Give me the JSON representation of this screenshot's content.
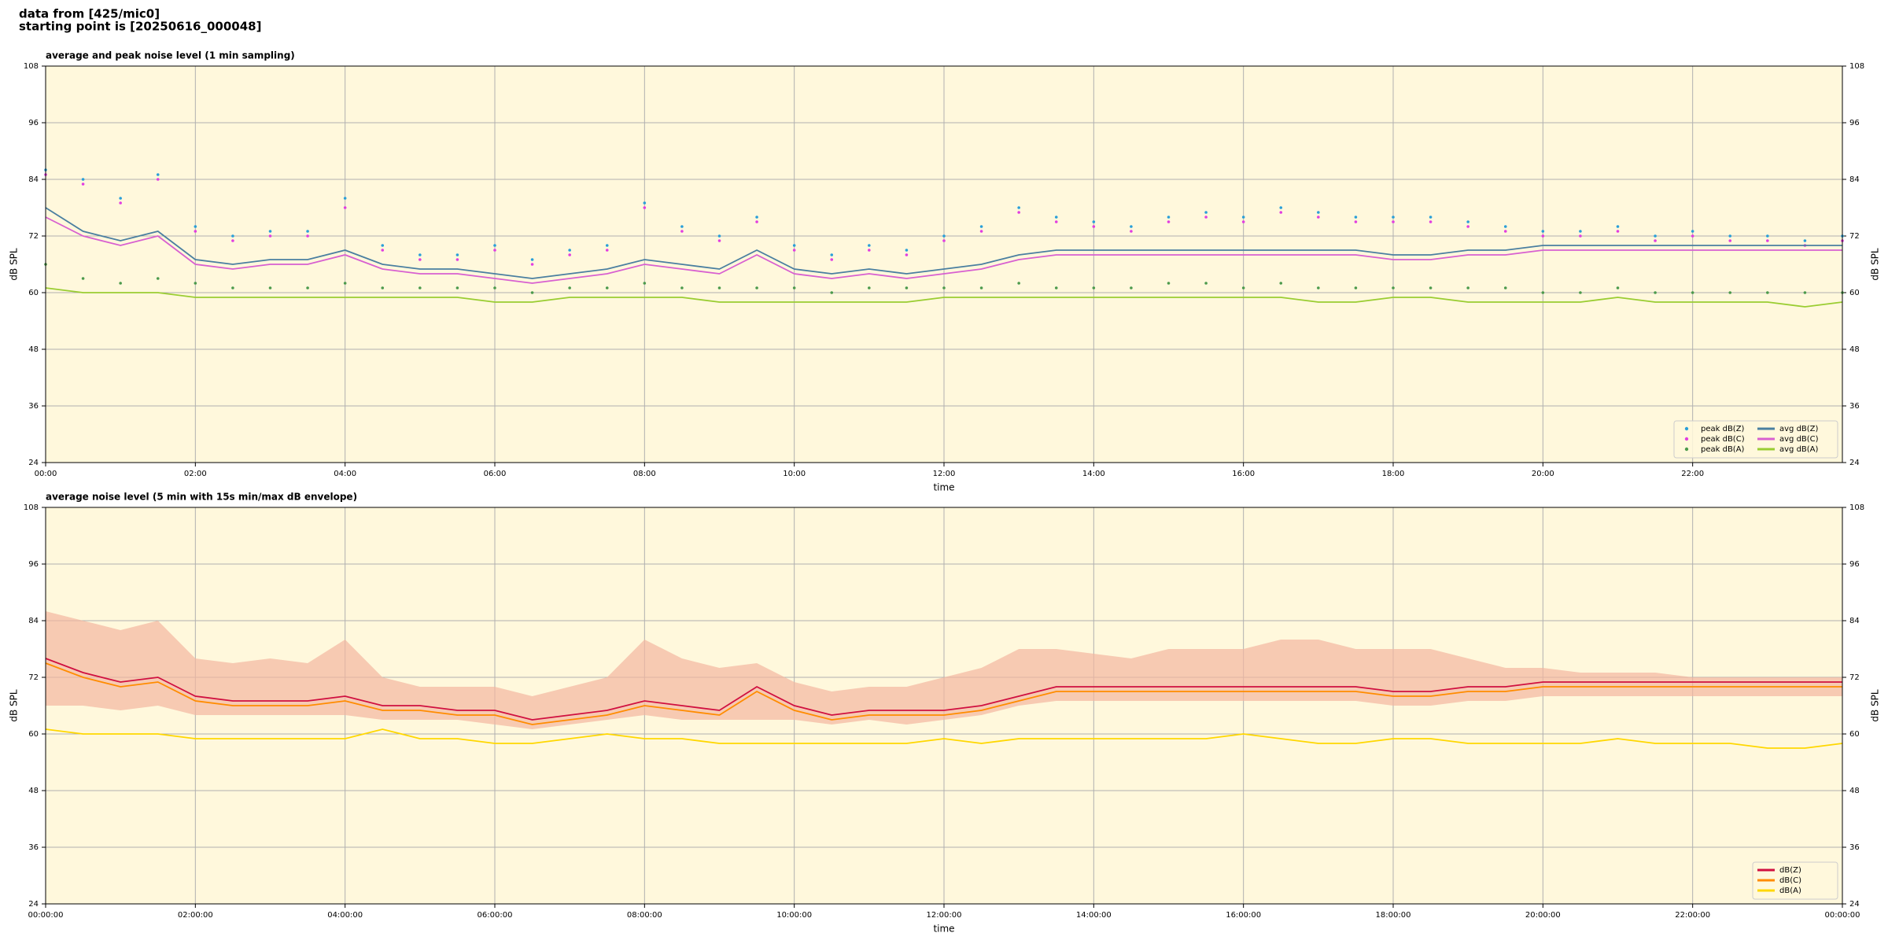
{
  "header": {
    "line1": "data from [425/mic0]",
    "line2": "starting point is [20250616_000048]"
  },
  "chart_data": [
    {
      "type": "line",
      "title": "average and peak noise level (1 min sampling)",
      "xlabel": "time",
      "ylabel": "dB SPL",
      "xlim": [
        0,
        24
      ],
      "ylim": [
        24,
        108
      ],
      "xticks": [
        {
          "value": 0,
          "label": "00:00"
        },
        {
          "value": 2,
          "label": "02:00"
        },
        {
          "value": 4,
          "label": "04:00"
        },
        {
          "value": 6,
          "label": "06:00"
        },
        {
          "value": 8,
          "label": "08:00"
        },
        {
          "value": 10,
          "label": "10:00"
        },
        {
          "value": 12,
          "label": "12:00"
        },
        {
          "value": 14,
          "label": "14:00"
        },
        {
          "value": 16,
          "label": "16:00"
        },
        {
          "value": 18,
          "label": "18:00"
        },
        {
          "value": 20,
          "label": "20:00"
        },
        {
          "value": 22,
          "label": "22:00"
        }
      ],
      "yticks": [
        24,
        36,
        48,
        60,
        72,
        84,
        96,
        108
      ],
      "grid": true,
      "legend": "lower right",
      "legend_ncol": 2,
      "background": "#fff8dc",
      "x": [
        0,
        0.5,
        1,
        1.5,
        2,
        2.5,
        3,
        3.5,
        4,
        4.5,
        5,
        5.5,
        6,
        6.5,
        7,
        7.5,
        8,
        8.5,
        9,
        9.5,
        10,
        10.5,
        11,
        11.5,
        12,
        12.5,
        13,
        13.5,
        14,
        14.5,
        15,
        15.5,
        16,
        16.5,
        17,
        17.5,
        18,
        18.5,
        19,
        19.5,
        20,
        20.5,
        21,
        21.5,
        22,
        22.5,
        23,
        23.5,
        24
      ],
      "series": [
        {
          "name": "peak dB(Z)",
          "type": "scatter",
          "color": "#2a9fd8",
          "values": [
            86,
            84,
            80,
            85,
            74,
            72,
            73,
            73,
            80,
            70,
            68,
            68,
            70,
            67,
            69,
            70,
            79,
            74,
            72,
            76,
            70,
            68,
            70,
            69,
            72,
            74,
            78,
            76,
            75,
            74,
            76,
            77,
            76,
            78,
            77,
            76,
            76,
            76,
            75,
            74,
            73,
            73,
            74,
            72,
            73,
            72,
            72,
            71,
            72
          ]
        },
        {
          "name": "peak dB(C)",
          "type": "scatter",
          "color": "#e23ee0",
          "values": [
            85,
            83,
            79,
            84,
            73,
            71,
            72,
            72,
            78,
            69,
            67,
            67,
            69,
            66,
            68,
            69,
            78,
            73,
            71,
            75,
            69,
            67,
            69,
            68,
            71,
            73,
            77,
            75,
            74,
            73,
            75,
            76,
            75,
            77,
            76,
            75,
            75,
            75,
            74,
            73,
            72,
            72,
            73,
            71,
            72,
            71,
            71,
            70,
            71
          ]
        },
        {
          "name": "peak dB(A)",
          "type": "scatter",
          "color": "#4c9a4c",
          "values": [
            66,
            63,
            62,
            63,
            62,
            61,
            61,
            61,
            62,
            61,
            61,
            61,
            61,
            60,
            61,
            61,
            62,
            61,
            61,
            61,
            61,
            60,
            61,
            61,
            61,
            61,
            62,
            61,
            61,
            61,
            62,
            62,
            61,
            62,
            61,
            61,
            61,
            61,
            61,
            61,
            60,
            60,
            61,
            60,
            60,
            60,
            60,
            60,
            60
          ]
        },
        {
          "name": "avg dB(Z)",
          "type": "line",
          "color": "#4a7fa0",
          "values": [
            78,
            73,
            71,
            73,
            67,
            66,
            67,
            67,
            69,
            66,
            65,
            65,
            64,
            63,
            64,
            65,
            67,
            66,
            65,
            69,
            65,
            64,
            65,
            64,
            65,
            66,
            68,
            69,
            69,
            69,
            69,
            69,
            69,
            69,
            69,
            69,
            68,
            68,
            69,
            69,
            70,
            70,
            70,
            70,
            70,
            70,
            70,
            70,
            70
          ]
        },
        {
          "name": "avg dB(C)",
          "type": "line",
          "color": "#d860d0",
          "values": [
            76,
            72,
            70,
            72,
            66,
            65,
            66,
            66,
            68,
            65,
            64,
            64,
            63,
            62,
            63,
            64,
            66,
            65,
            64,
            68,
            64,
            63,
            64,
            63,
            64,
            65,
            67,
            68,
            68,
            68,
            68,
            68,
            68,
            68,
            68,
            68,
            67,
            67,
            68,
            68,
            69,
            69,
            69,
            69,
            69,
            69,
            69,
            69,
            69
          ]
        },
        {
          "name": "avg dB(A)",
          "type": "line",
          "color": "#9acd32",
          "values": [
            61,
            60,
            60,
            60,
            59,
            59,
            59,
            59,
            59,
            59,
            59,
            59,
            58,
            58,
            59,
            59,
            59,
            59,
            58,
            58,
            58,
            58,
            58,
            58,
            59,
            59,
            59,
            59,
            59,
            59,
            59,
            59,
            59,
            59,
            58,
            58,
            59,
            59,
            58,
            58,
            58,
            58,
            59,
            58,
            58,
            58,
            58,
            57,
            58
          ]
        }
      ]
    },
    {
      "type": "line",
      "title": "average noise level (5 min with 15s min/max dB envelope)",
      "xlabel": "time",
      "ylabel": "dB SPL",
      "xlim": [
        0,
        24
      ],
      "ylim": [
        24,
        108
      ],
      "xticks": [
        {
          "value": 0,
          "label": "00:00:00"
        },
        {
          "value": 2,
          "label": "02:00:00"
        },
        {
          "value": 4,
          "label": "04:00:00"
        },
        {
          "value": 6,
          "label": "06:00:00"
        },
        {
          "value": 8,
          "label": "08:00:00"
        },
        {
          "value": 10,
          "label": "10:00:00"
        },
        {
          "value": 12,
          "label": "12:00:00"
        },
        {
          "value": 14,
          "label": "14:00:00"
        },
        {
          "value": 16,
          "label": "16:00:00"
        },
        {
          "value": 18,
          "label": "18:00:00"
        },
        {
          "value": 20,
          "label": "20:00:00"
        },
        {
          "value": 22,
          "label": "22:00:00"
        },
        {
          "value": 24,
          "label": "00:00:00"
        }
      ],
      "yticks": [
        24,
        36,
        48,
        60,
        72,
        84,
        96,
        108
      ],
      "grid": true,
      "legend": "lower right",
      "legend_ncol": 1,
      "background": "#fff8dc",
      "x": [
        0,
        0.5,
        1,
        1.5,
        2,
        2.5,
        3,
        3.5,
        4,
        4.5,
        5,
        5.5,
        6,
        6.5,
        7,
        7.5,
        8,
        8.5,
        9,
        9.5,
        10,
        10.5,
        11,
        11.5,
        12,
        12.5,
        13,
        13.5,
        14,
        14.5,
        15,
        15.5,
        16,
        16.5,
        17,
        17.5,
        18,
        18.5,
        19,
        19.5,
        20,
        20.5,
        21,
        21.5,
        22,
        22.5,
        23,
        23.5,
        24
      ],
      "envelope": {
        "color": "#f4b6a0",
        "upper": [
          86,
          84,
          82,
          84,
          76,
          75,
          76,
          75,
          80,
          72,
          70,
          70,
          70,
          68,
          70,
          72,
          80,
          76,
          74,
          75,
          71,
          69,
          70,
          70,
          72,
          74,
          78,
          78,
          77,
          76,
          78,
          78,
          78,
          80,
          80,
          78,
          78,
          78,
          76,
          74,
          74,
          73,
          73,
          73,
          72,
          72,
          72,
          72,
          72
        ],
        "lower": [
          66,
          66,
          65,
          66,
          64,
          64,
          64,
          64,
          64,
          63,
          63,
          63,
          62,
          61,
          62,
          63,
          64,
          63,
          63,
          63,
          63,
          62,
          63,
          62,
          63,
          64,
          66,
          67,
          67,
          67,
          67,
          67,
          67,
          67,
          67,
          67,
          66,
          66,
          67,
          67,
          68,
          68,
          68,
          68,
          68,
          68,
          68,
          68,
          68
        ]
      },
      "series": [
        {
          "name": "dB(Z)",
          "type": "line",
          "color": "#d01040",
          "values": [
            76,
            73,
            71,
            72,
            68,
            67,
            67,
            67,
            68,
            66,
            66,
            65,
            65,
            63,
            64,
            65,
            67,
            66,
            65,
            70,
            66,
            64,
            65,
            65,
            65,
            66,
            68,
            70,
            70,
            70,
            70,
            70,
            70,
            70,
            70,
            70,
            69,
            69,
            70,
            70,
            71,
            71,
            71,
            71,
            71,
            71,
            71,
            71,
            71
          ]
        },
        {
          "name": "dB(C)",
          "type": "line",
          "color": "#ff8c00",
          "values": [
            75,
            72,
            70,
            71,
            67,
            66,
            66,
            66,
            67,
            65,
            65,
            64,
            64,
            62,
            63,
            64,
            66,
            65,
            64,
            69,
            65,
            63,
            64,
            64,
            64,
            65,
            67,
            69,
            69,
            69,
            69,
            69,
            69,
            69,
            69,
            69,
            68,
            68,
            69,
            69,
            70,
            70,
            70,
            70,
            70,
            70,
            70,
            70,
            70
          ]
        },
        {
          "name": "dB(A)",
          "type": "line",
          "color": "#ffd700",
          "values": [
            61,
            60,
            60,
            60,
            59,
            59,
            59,
            59,
            59,
            61,
            59,
            59,
            58,
            58,
            59,
            60,
            59,
            59,
            58,
            58,
            58,
            58,
            58,
            58,
            59,
            58,
            59,
            59,
            59,
            59,
            59,
            59,
            60,
            59,
            58,
            58,
            59,
            59,
            58,
            58,
            58,
            58,
            59,
            58,
            58,
            58,
            57,
            57,
            58
          ]
        }
      ]
    }
  ]
}
